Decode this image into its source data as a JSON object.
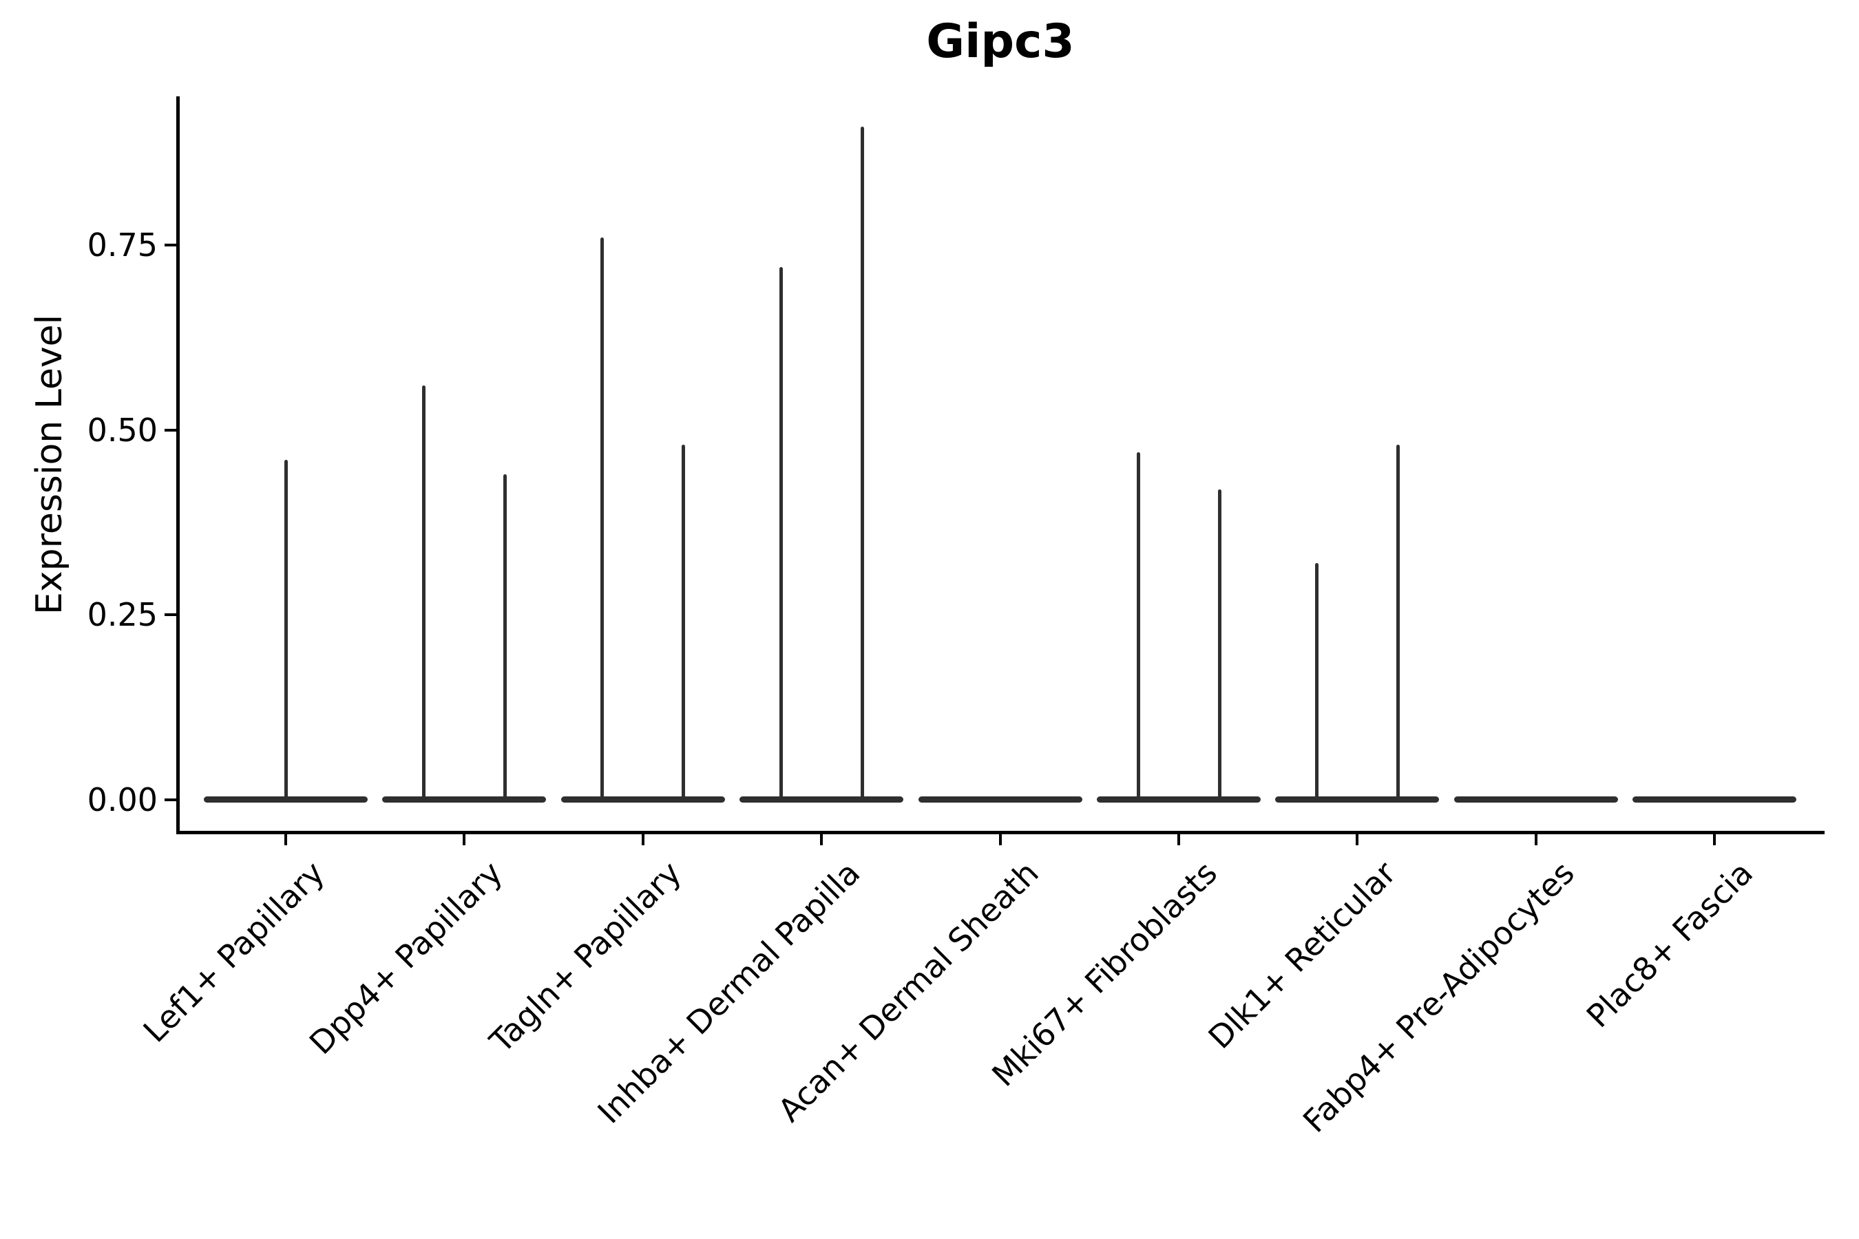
{
  "title": "Gipc3",
  "y_axis_label": "Expression Level",
  "colors": {
    "violin_ink": "#2f2f2f",
    "axis_ink": "#000000",
    "text": "#000000",
    "background": "#ffffff"
  },
  "chart_data": {
    "type": "violin",
    "title": "Gipc3",
    "xlabel": "",
    "ylabel": "Expression Level",
    "ylim": [
      0,
      0.95
    ],
    "y_ticks": [
      0,
      0.25,
      0.5,
      0.75
    ],
    "y_tick_labels": [
      "0.00",
      "0.25",
      "0.50",
      "0.75"
    ],
    "x_tick_rotation_deg": 45,
    "grid": false,
    "legend": "none",
    "categories": [
      "Lef1+ Papillary",
      "Dpp4+ Papillary",
      "Tagln+ Papillary",
      "Inhba+ Dermal Papilla",
      "Acan+ Dermal Sheath",
      "Mki67+ Fibroblasts",
      "Dlk1+ Reticular",
      "Fabp4+ Pre-Adipocytes",
      "Plac8+ Fascia"
    ],
    "violins": [
      {
        "category": "Lef1+ Papillary",
        "baseline_value": 0,
        "spikes": [
          {
            "position": "center",
            "max_expression": 0.46
          }
        ]
      },
      {
        "category": "Dpp4+ Papillary",
        "baseline_value": 0,
        "spikes": [
          {
            "position": "left",
            "max_expression": 0.56
          },
          {
            "position": "right",
            "max_expression": 0.44
          }
        ]
      },
      {
        "category": "Tagln+ Papillary",
        "baseline_value": 0,
        "spikes": [
          {
            "position": "left",
            "max_expression": 0.76
          },
          {
            "position": "right",
            "max_expression": 0.48
          }
        ]
      },
      {
        "category": "Inhba+ Dermal Papilla",
        "baseline_value": 0,
        "spikes": [
          {
            "position": "left",
            "max_expression": 0.72
          },
          {
            "position": "right",
            "max_expression": 0.91
          }
        ]
      },
      {
        "category": "Acan+ Dermal Sheath",
        "baseline_value": 0,
        "spikes": []
      },
      {
        "category": "Mki67+ Fibroblasts",
        "baseline_value": 0,
        "spikes": [
          {
            "position": "left",
            "max_expression": 0.47
          },
          {
            "position": "right",
            "max_expression": 0.42
          }
        ]
      },
      {
        "category": "Dlk1+ Reticular",
        "baseline_value": 0,
        "spikes": [
          {
            "position": "left",
            "max_expression": 0.32
          },
          {
            "position": "right",
            "max_expression": 0.48
          }
        ]
      },
      {
        "category": "Fabp4+ Pre-Adipocytes",
        "baseline_value": 0,
        "spikes": []
      },
      {
        "category": "Plac8+ Fascia",
        "baseline_value": 0,
        "spikes": []
      }
    ]
  }
}
